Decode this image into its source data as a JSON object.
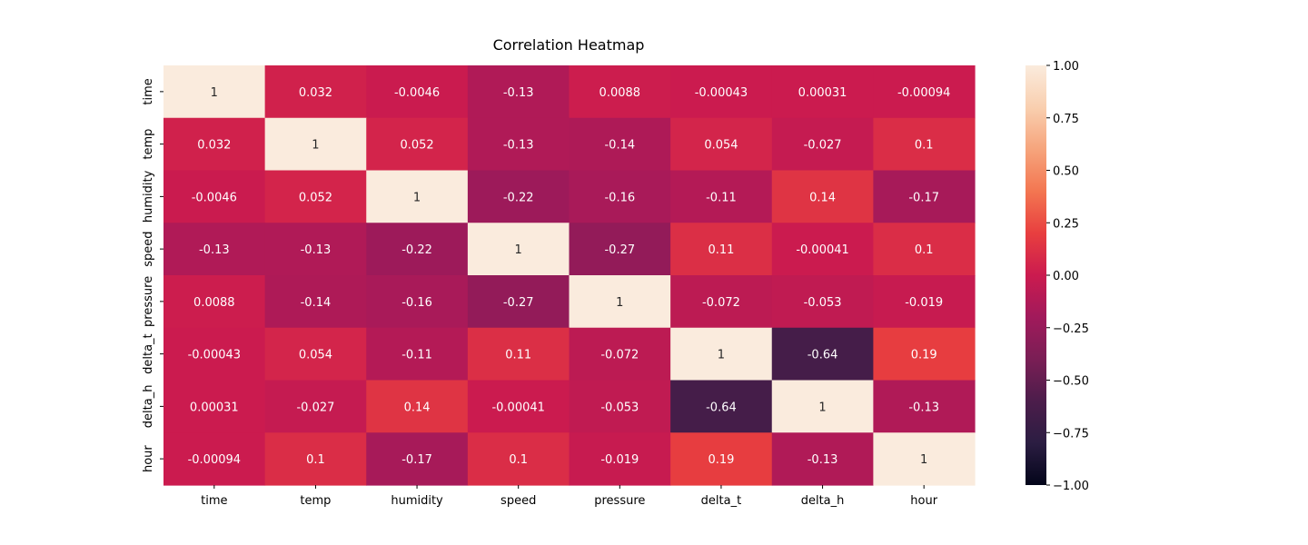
{
  "chart_data": {
    "type": "heatmap",
    "title": "Correlation Heatmap",
    "xlabel": "",
    "ylabel": "",
    "x_labels": [
      "time",
      "temp",
      "humidity",
      "speed",
      "pressure",
      "delta_t",
      "delta_h",
      "hour"
    ],
    "y_labels": [
      "time",
      "temp",
      "humidity",
      "speed",
      "pressure",
      "delta_t",
      "delta_h",
      "hour"
    ],
    "values": [
      [
        1,
        0.032,
        -0.0046,
        -0.13,
        0.0088,
        -0.00043,
        0.00031,
        -0.00094
      ],
      [
        0.032,
        1,
        0.052,
        -0.13,
        -0.14,
        0.054,
        -0.027,
        0.1
      ],
      [
        -0.0046,
        0.052,
        1,
        -0.22,
        -0.16,
        -0.11,
        0.14,
        -0.17
      ],
      [
        -0.13,
        -0.13,
        -0.22,
        1,
        -0.27,
        0.11,
        -0.00041,
        0.1
      ],
      [
        0.0088,
        -0.14,
        -0.16,
        -0.27,
        1,
        -0.072,
        -0.053,
        -0.019
      ],
      [
        -0.00043,
        0.054,
        -0.11,
        0.11,
        -0.072,
        1,
        -0.64,
        0.19
      ],
      [
        0.00031,
        -0.027,
        0.14,
        -0.00041,
        -0.053,
        -0.64,
        1,
        -0.13
      ],
      [
        -0.00094,
        0.1,
        -0.17,
        0.1,
        -0.019,
        0.19,
        -0.13,
        1
      ]
    ],
    "annotations": [
      [
        "1",
        "0.032",
        "-0.0046",
        "-0.13",
        "0.0088",
        "-0.00043",
        "0.00031",
        "-0.00094"
      ],
      [
        "0.032",
        "1",
        "0.052",
        "-0.13",
        "-0.14",
        "0.054",
        "-0.027",
        "0.1"
      ],
      [
        "-0.0046",
        "0.052",
        "1",
        "-0.22",
        "-0.16",
        "-0.11",
        "0.14",
        "-0.17"
      ],
      [
        "-0.13",
        "-0.13",
        "-0.22",
        "1",
        "-0.27",
        "0.11",
        "-0.00041",
        "0.1"
      ],
      [
        "0.0088",
        "-0.14",
        "-0.16",
        "-0.27",
        "1",
        "-0.072",
        "-0.053",
        "-0.019"
      ],
      [
        "-0.00043",
        "0.054",
        "-0.11",
        "0.11",
        "-0.072",
        "1",
        "-0.64",
        "0.19"
      ],
      [
        "0.00031",
        "-0.027",
        "0.14",
        "-0.00041",
        "-0.053",
        "-0.64",
        "1",
        "-0.13"
      ],
      [
        "-0.00094",
        "0.1",
        "-0.17",
        "0.1",
        "-0.019",
        "0.19",
        "-0.13",
        "1"
      ]
    ],
    "colorbar": {
      "range": [
        -1,
        1
      ],
      "ticks": [
        1,
        0.75,
        0.5,
        0.25,
        0,
        -0.25,
        -0.5,
        -0.75,
        -1
      ],
      "tick_labels": [
        "1.00",
        "0.75",
        "0.50",
        "0.25",
        "0.00",
        "−0.25",
        "−0.50",
        "−0.75",
        "−1.00"
      ],
      "colormap": "rocket",
      "colormap_stops": [
        "#03051a",
        "#2b1d42",
        "#4c1d4b",
        "#7a1e55",
        "#a11a5b",
        "#cb1b4f",
        "#e83f3f",
        "#f37651",
        "#f6a47c",
        "#f9cfaf",
        "#faebdd"
      ]
    },
    "grid": false
  }
}
